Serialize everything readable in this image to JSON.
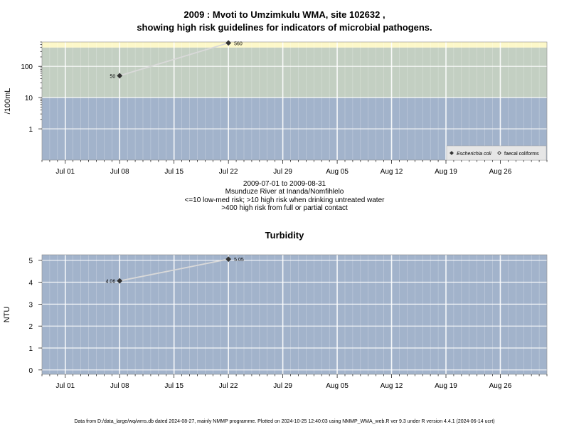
{
  "header": {
    "title_line1": "2009 : Mvoti to Umzimkulu WMA, site 102632 ,",
    "title_line2": "showing high risk guidelines for indicators of microbial pathogens."
  },
  "microbial_caption": {
    "line1": "2009-07-01 to 2009-08-31",
    "line2": "Msunduze River at Inanda/Nomfihlelo",
    "line3": "<=10 low-med risk; >10 high risk when drinking untreated water",
    "line4": ">400 high risk from full or partial contact"
  },
  "turbidity_title": "Turbidity",
  "footer": "Data from D:/data_large/wq/wms.db dated 2024-08-27, mainly NMMP programme. Plotted on 2024-10-25 12:40:03 using NMMP_WMA_web.R ver 9.3 under R version 4.4.1 (2024-06-14 ucrt)",
  "colors": {
    "risk_low": "#a2b3cb",
    "risk_high": "#c3cfc2",
    "risk_contact": "#fdf8c9",
    "gridline": "#ffffff",
    "series_line": "#d9d9d9",
    "point": "#333333"
  },
  "chart_data": [
    {
      "type": "line",
      "ylabel": "/100mL",
      "yscale": "log",
      "yticks": [
        "1",
        "10",
        "100"
      ],
      "xticks": [
        "Jul 01",
        "Jul 08",
        "Jul 15",
        "Jul 22",
        "Jul 29",
        "Aug 05",
        "Aug 12",
        "Aug 19",
        "Aug 26"
      ],
      "xlim": [
        "2009-06-28",
        "2009-09-01"
      ],
      "ylim": [
        0.1,
        600
      ],
      "risk_bands": [
        {
          "from": 0.1,
          "to": 10
        },
        {
          "from": 10,
          "to": 400
        },
        {
          "from": 400,
          "to": 600
        }
      ],
      "legend_position": "bottom-right",
      "series": [
        {
          "name": "Escherichia coli",
          "marker": "filled-diamond",
          "x": [
            "2009-07-08",
            "2009-07-22"
          ],
          "y": [
            50,
            560
          ],
          "labels": [
            "50",
            "560"
          ]
        },
        {
          "name": "faecal coliforms",
          "marker": "open-diamond",
          "x": [],
          "y": [],
          "labels": []
        }
      ]
    },
    {
      "type": "line",
      "title": "Turbidity",
      "ylabel": "NTU",
      "yticks": [
        "0",
        "1",
        "2",
        "3",
        "4",
        "5"
      ],
      "xticks": [
        "Jul 01",
        "Jul 08",
        "Jul 15",
        "Jul 22",
        "Jul 29",
        "Aug 05",
        "Aug 12",
        "Aug 19",
        "Aug 26"
      ],
      "xlim": [
        "2009-06-28",
        "2009-09-01"
      ],
      "ylim": [
        -0.2,
        5.25
      ],
      "series": [
        {
          "name": "",
          "marker": "filled-diamond",
          "x": [
            "2009-07-08",
            "2009-07-22"
          ],
          "y": [
            4.06,
            5.05
          ],
          "labels": [
            "4.06",
            "5.05"
          ]
        }
      ]
    }
  ]
}
